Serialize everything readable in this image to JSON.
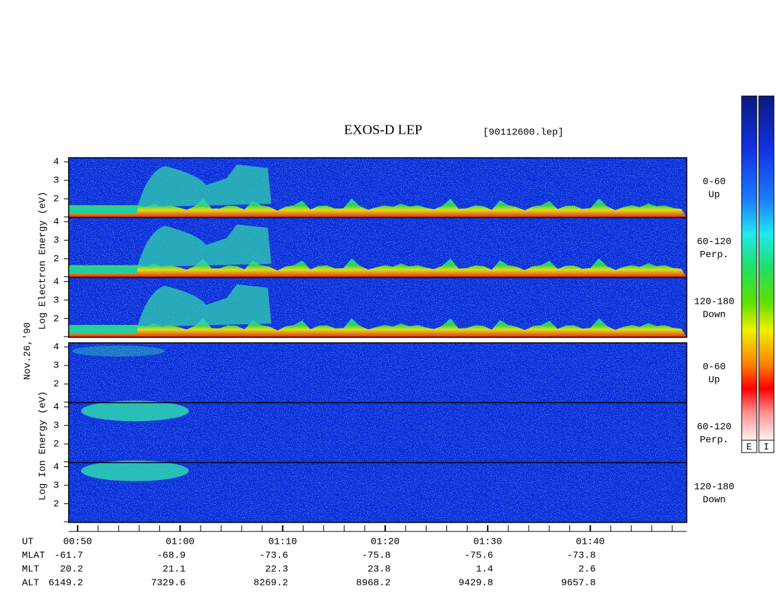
{
  "header": {
    "title": "EXOS-D LEP",
    "file": "[90112600.lep]"
  },
  "date": "Nov.26,'90",
  "energy_ticks": [
    "4",
    "3",
    "2"
  ],
  "electron": {
    "axis_label": "Log Electron Energy (eV)",
    "panels": [
      {
        "range": "0-60",
        "direction": "Up"
      },
      {
        "range": "60-120",
        "direction": "Perp."
      },
      {
        "range": "120-180",
        "direction": "Down"
      }
    ]
  },
  "ion": {
    "axis_label": "Log Ion Energy (eV)",
    "panels": [
      {
        "range": "0-60",
        "direction": "Up"
      },
      {
        "range": "60-120",
        "direction": "Perp."
      },
      {
        "range": "120-180",
        "direction": "Down"
      }
    ]
  },
  "colorbars": [
    "E",
    "I"
  ],
  "footer": {
    "rows": [
      {
        "label": "UT",
        "values": [
          "00:50",
          "01:00",
          "01:10",
          "01:20",
          "01:30",
          "01:40"
        ]
      },
      {
        "label": "MLAT",
        "values": [
          "-61.7",
          "-68.9",
          "-73.6",
          "-75.8",
          "-75.6",
          "-73.8"
        ]
      },
      {
        "label": "MLT",
        "values": [
          "20.2",
          "21.1",
          "22.3",
          "23.8",
          "1.4",
          "2.6"
        ]
      },
      {
        "label": "ALT",
        "values": [
          "6149.2",
          "7329.6",
          "8269.2",
          "8968.2",
          "9429.8",
          "9657.8"
        ]
      }
    ]
  }
}
